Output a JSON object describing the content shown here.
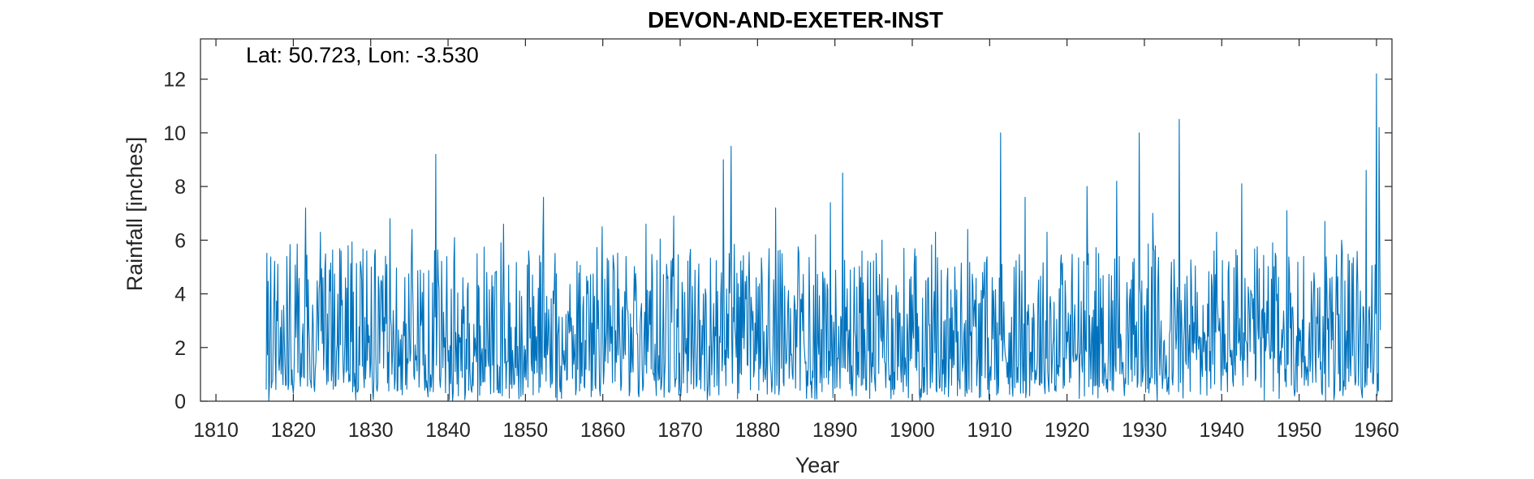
{
  "chart_data": {
    "type": "line",
    "title": "DEVON-AND-EXETER-INST",
    "annotation": "Lat: 50.723, Lon: -3.530",
    "xlabel": "Year",
    "ylabel": "Rainfall [inches]",
    "xlim": [
      1808,
      1962
    ],
    "ylim": [
      0,
      13.5
    ],
    "xticks": [
      1810,
      1820,
      1830,
      1840,
      1850,
      1860,
      1870,
      1880,
      1890,
      1900,
      1910,
      1920,
      1930,
      1940,
      1950,
      1960
    ],
    "yticks": [
      0,
      2,
      4,
      6,
      8,
      10,
      12
    ],
    "grid": false,
    "series": [
      {
        "color": "#0072BD",
        "data_start_year": 1816.5,
        "data_end_year": 1960.5,
        "peaks": [
          [
            1817.0,
            3.4
          ],
          [
            1818.0,
            5.1
          ],
          [
            1821.6,
            7.2
          ],
          [
            1823.5,
            6.3
          ],
          [
            1827.1,
            5.8
          ],
          [
            1830.1,
            5.0
          ],
          [
            1832.5,
            6.8
          ],
          [
            1835.3,
            6.4
          ],
          [
            1838.4,
            9.2
          ],
          [
            1840.8,
            6.1
          ],
          [
            1847.2,
            6.6
          ],
          [
            1850.4,
            5.6
          ],
          [
            1852.3,
            7.6
          ],
          [
            1859.9,
            6.5
          ],
          [
            1865.6,
            6.6
          ],
          [
            1869.2,
            6.9
          ],
          [
            1875.6,
            9.0
          ],
          [
            1876.6,
            9.5
          ],
          [
            1882.3,
            7.2
          ],
          [
            1887.5,
            6.2
          ],
          [
            1889.4,
            7.4
          ],
          [
            1891.0,
            8.5
          ],
          [
            1896.1,
            6.0
          ],
          [
            1903.0,
            6.3
          ],
          [
            1907.2,
            6.4
          ],
          [
            1911.4,
            10.0
          ],
          [
            1914.6,
            7.6
          ],
          [
            1917.4,
            6.3
          ],
          [
            1922.6,
            8.0
          ],
          [
            1926.4,
            8.2
          ],
          [
            1929.3,
            10.0
          ],
          [
            1931.1,
            7.0
          ],
          [
            1934.5,
            10.5
          ],
          [
            1939.3,
            6.3
          ],
          [
            1942.6,
            8.1
          ],
          [
            1946.6,
            5.9
          ],
          [
            1948.4,
            7.1
          ],
          [
            1953.3,
            6.7
          ],
          [
            1955.5,
            6.0
          ],
          [
            1958.7,
            8.6
          ],
          [
            1960.0,
            12.2
          ],
          [
            1960.3,
            10.2
          ]
        ],
        "dips": [
          [
            1816.8,
            0.0
          ],
          [
            1820.0,
            0.3
          ],
          [
            1837.2,
            0.5
          ],
          [
            1840.6,
            0.0
          ],
          [
            1843.8,
            0.0
          ],
          [
            1854.1,
            0.0
          ],
          [
            1854.7,
            0.1
          ],
          [
            1870.1,
            0.2
          ],
          [
            1877.6,
            0.3
          ],
          [
            1886.3,
            0.1
          ],
          [
            1894.5,
            0.1
          ],
          [
            1915.2,
            0.2
          ],
          [
            1921.6,
            0.1
          ],
          [
            1931.7,
            0.0
          ],
          [
            1953.4,
            0.0
          ],
          [
            1958.1,
            0.3
          ]
        ],
        "typical_range": [
          0.3,
          5.5
        ],
        "typical_median": 2.5
      }
    ]
  }
}
